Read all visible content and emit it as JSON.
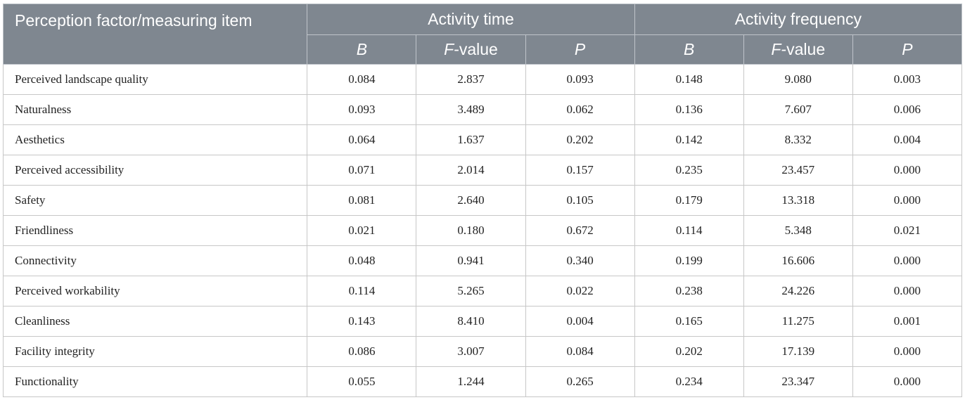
{
  "header": {
    "first_col": "Perception factor/measuring item",
    "groups": [
      "Activity time",
      "Activity frequency"
    ],
    "sub": {
      "b": "B",
      "f_italic": "F",
      "f_rest": "-value",
      "p": "P"
    }
  },
  "rows": [
    {
      "label": "Perceived landscape quality",
      "t_b": "0.084",
      "t_f": "2.837",
      "t_p": "0.093",
      "f_b": "0.148",
      "f_f": "9.080",
      "f_p": "0.003"
    },
    {
      "label": "Naturalness",
      "t_b": "0.093",
      "t_f": "3.489",
      "t_p": "0.062",
      "f_b": "0.136",
      "f_f": "7.607",
      "f_p": "0.006"
    },
    {
      "label": "Aesthetics",
      "t_b": "0.064",
      "t_f": "1.637",
      "t_p": "0.202",
      "f_b": "0.142",
      "f_f": "8.332",
      "f_p": "0.004"
    },
    {
      "label": "Perceived accessibility",
      "t_b": "0.071",
      "t_f": "2.014",
      "t_p": "0.157",
      "f_b": "0.235",
      "f_f": "23.457",
      "f_p": "0.000"
    },
    {
      "label": "Safety",
      "t_b": "0.081",
      "t_f": "2.640",
      "t_p": "0.105",
      "f_b": "0.179",
      "f_f": "13.318",
      "f_p": "0.000"
    },
    {
      "label": "Friendliness",
      "t_b": "0.021",
      "t_f": "0.180",
      "t_p": "0.672",
      "f_b": "0.114",
      "f_f": "5.348",
      "f_p": "0.021"
    },
    {
      "label": "Connectivity",
      "t_b": "0.048",
      "t_f": "0.941",
      "t_p": "0.340",
      "f_b": "0.199",
      "f_f": "16.606",
      "f_p": "0.000"
    },
    {
      "label": "Perceived workability",
      "t_b": "0.114",
      "t_f": "5.265",
      "t_p": "0.022",
      "f_b": "0.238",
      "f_f": "24.226",
      "f_p": "0.000"
    },
    {
      "label": "Cleanliness",
      "t_b": "0.143",
      "t_f": "8.410",
      "t_p": "0.004",
      "f_b": "0.165",
      "f_f": "11.275",
      "f_p": "0.001"
    },
    {
      "label": "Facility integrity",
      "t_b": "0.086",
      "t_f": "3.007",
      "t_p": "0.084",
      "f_b": "0.202",
      "f_f": "17.139",
      "f_p": "0.000"
    },
    {
      "label": "Functionality",
      "t_b": "0.055",
      "t_f": "1.244",
      "t_p": "0.265",
      "f_b": "0.234",
      "f_f": "23.347",
      "f_p": "0.000"
    }
  ]
}
